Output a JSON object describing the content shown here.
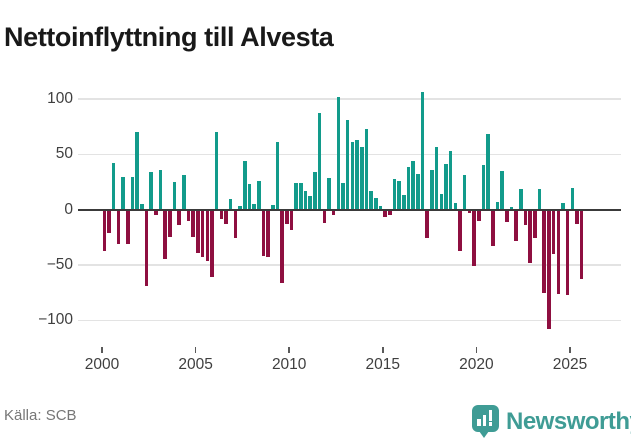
{
  "title": "Nettoinflyttning till Alvesta",
  "source": "Källa: SCB",
  "logo": {
    "text": "Newsworthy"
  },
  "colors": {
    "positive": "#129B8B",
    "negative": "#8E0F40",
    "grid": "#E3E3E3",
    "zero_axis": "#3A3A3A",
    "tick": "#5A5A5A",
    "axis_text": "#3F3F3F",
    "muted_text": "#767676",
    "logo_teal": "#3F9C95",
    "title_text": "#191919"
  },
  "chart_data": {
    "type": "bar",
    "title": "Nettoinflyttning till Alvesta",
    "xlabel": "",
    "ylabel": "",
    "grid": "horizontal",
    "legend_position": "none",
    "frequency": "quarterly",
    "start_year": 2000,
    "start_quarter": 1,
    "end_label": "2025 Q3",
    "ylim": [
      -115,
      110
    ],
    "y_ticks": [
      {
        "label": "100",
        "value": 100
      },
      {
        "label": "50",
        "value": 50
      },
      {
        "label": "0",
        "value": 0
      },
      {
        "label": "−50",
        "value": -50
      },
      {
        "label": "−100",
        "value": -100
      }
    ],
    "x_ticks": [
      {
        "label": "2000",
        "year": 2000
      },
      {
        "label": "2005",
        "year": 2005
      },
      {
        "label": "2010",
        "year": 2010
      },
      {
        "label": "2015",
        "year": 2015
      },
      {
        "label": "2020",
        "year": 2020
      },
      {
        "label": "2025",
        "year": 2025
      }
    ],
    "values": [
      -37,
      -21,
      42,
      -31,
      30,
      -31,
      30,
      70,
      5,
      -69,
      34,
      -5,
      36,
      -45,
      -25,
      25,
      -14,
      31,
      -10,
      -25,
      -39,
      -43,
      -46,
      -61,
      70,
      -8,
      -13,
      10,
      -26,
      3,
      44,
      23,
      5,
      26,
      -42,
      -43,
      4,
      61,
      -66,
      -13,
      -18,
      24,
      24,
      17,
      12,
      34,
      87,
      -12,
      29,
      -5,
      102,
      24,
      81,
      61,
      63,
      57,
      73,
      17,
      11,
      3,
      -7,
      -5,
      28,
      26,
      13,
      39,
      44,
      32,
      106,
      -26,
      36,
      57,
      14,
      41,
      53,
      6,
      -37,
      31,
      -3,
      -51,
      -10,
      40,
      68,
      -33,
      7,
      35,
      -11,
      2,
      -28,
      19,
      -14,
      -48,
      -26,
      19,
      -75,
      -108,
      -40,
      -76,
      6,
      -77,
      20,
      -13,
      -63
    ]
  }
}
